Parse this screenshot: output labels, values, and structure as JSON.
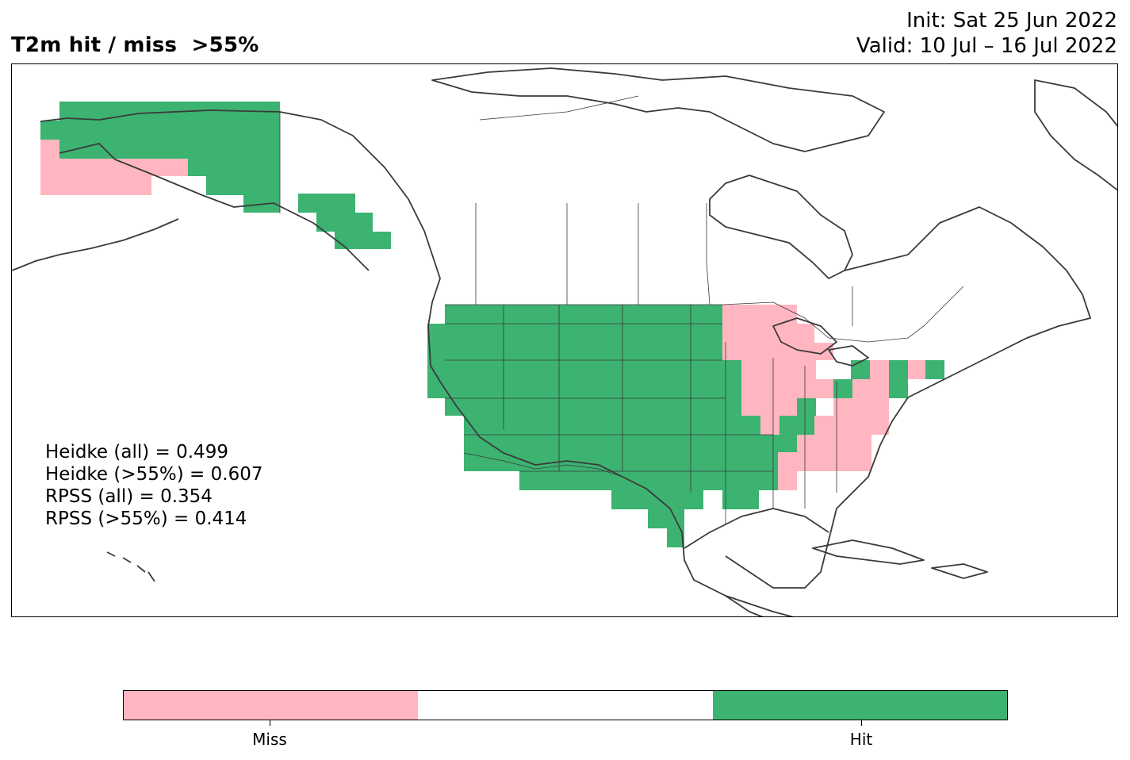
{
  "title": {
    "left": "T2m hit / miss  >55%",
    "init": "Init: Sat 25 Jun 2022",
    "valid": "Valid: 10 Jul – 16 Jul 2022"
  },
  "stats": {
    "heidke_all": "Heidke (all) = 0.499",
    "heidke_55": "Heidke (>55%) = 0.607",
    "rpss_all": "RPSS (all) = 0.354",
    "rpss_55": "RPSS (>55%) = 0.414"
  },
  "colors": {
    "miss": "#ffb6c1",
    "neutral": "#ffffff",
    "hit": "#3cb371",
    "coast": "#3a3a3a"
  },
  "colorbar": {
    "segments": [
      "miss",
      "neutral",
      "hit"
    ],
    "labels": {
      "miss": "Miss",
      "hit": "Hit"
    }
  }
}
